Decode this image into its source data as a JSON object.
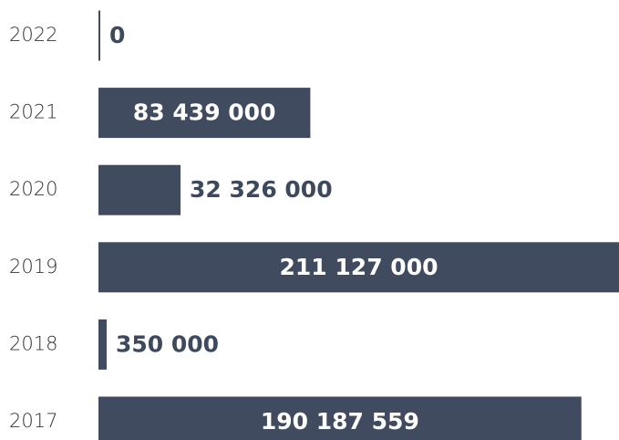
{
  "chart_data": {
    "type": "bar",
    "orientation": "horizontal",
    "categories": [
      "2022",
      "2021",
      "2020",
      "2019",
      "2018",
      "2017"
    ],
    "values": [
      0,
      83439000,
      32326000,
      211127000,
      350000,
      190187559
    ],
    "value_labels": [
      "0",
      "83 439 000",
      "32 326 000",
      "211 127 000",
      "350 000",
      "190 187 559"
    ],
    "color": "#414b5f",
    "xlim": [
      0,
      205000000
    ]
  }
}
